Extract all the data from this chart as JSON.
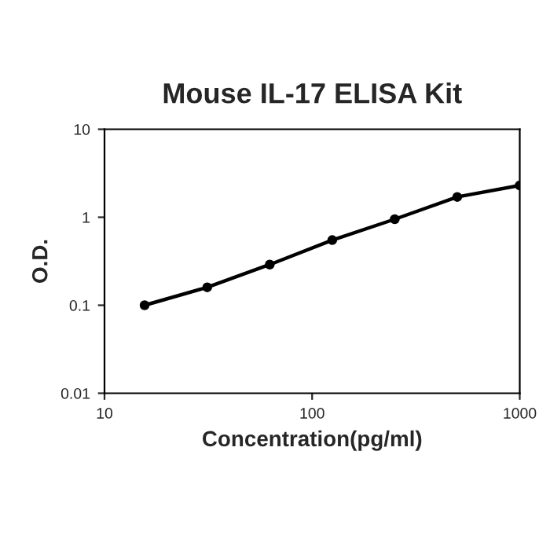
{
  "chart_data": {
    "type": "line",
    "title": "Mouse IL-17 ELISA Kit",
    "xlabel": "Concentration(pg/ml)",
    "ylabel": "O.D.",
    "x": [
      15.6,
      31.25,
      62.5,
      125,
      250,
      500,
      1000
    ],
    "series": [
      {
        "color": "#000000",
        "values": [
          0.1,
          0.16,
          0.29,
          0.55,
          0.95,
          1.7,
          2.3
        ]
      }
    ],
    "log": "xy",
    "xlim": [
      10,
      1000
    ],
    "ylim": [
      0.01,
      10
    ],
    "xticks": [
      10,
      100,
      1000
    ],
    "yticks": [
      0.01,
      0.1,
      1,
      10
    ],
    "marker": "circle",
    "line_style": "solid",
    "grid": false,
    "legend": false
  }
}
